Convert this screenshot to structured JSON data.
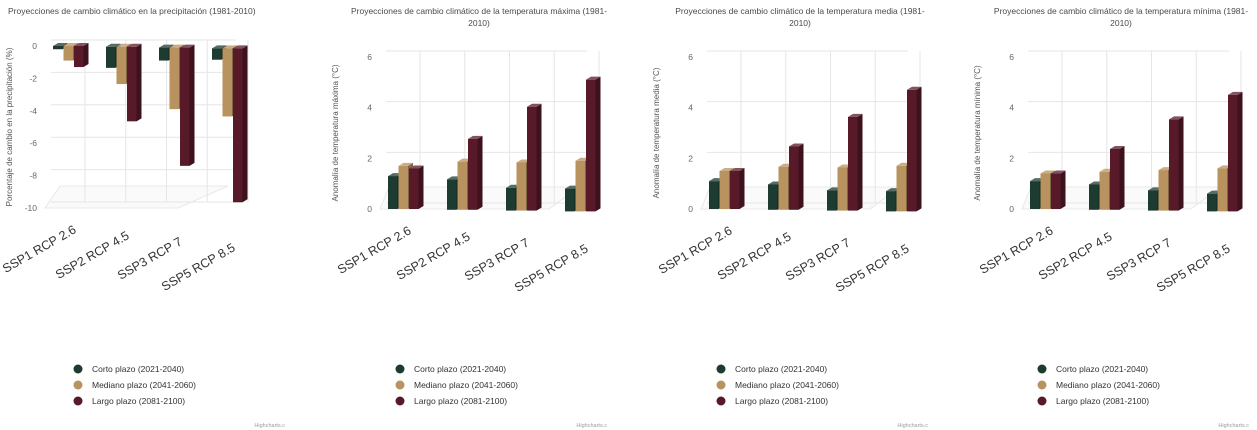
{
  "colors": {
    "series": [
      "#1d3b31",
      "#b8925f",
      "#581a29"
    ],
    "grid": "#e6e6e6",
    "text": "#333333"
  },
  "legend": [
    {
      "label": "Corto plazo (2021-2040)",
      "icon": "circle-marker"
    },
    {
      "label": "Mediano plazo (2041-2060)",
      "icon": "circle-marker"
    },
    {
      "label": "Largo plazo (2081-2100)",
      "icon": "circle-marker"
    }
  ],
  "credit": "Highcharts.c",
  "chart_data": [
    {
      "type": "bar",
      "title": [
        "Proyecciones de cambio climático en la precipitación (1981-2010)"
      ],
      "ylabel": "Porcentaje de cambio en la precipitación (%)",
      "yticks": [
        "0",
        "-2",
        "-4",
        "-6",
        "-8",
        "-10"
      ],
      "ylim": [
        -10,
        0
      ],
      "grid": true,
      "legend_position": "bottom",
      "categories": [
        "SSP1 RCP 2.6",
        "SSP2 RCP 4.5",
        "SSP3 RCP 7",
        "SSP5 RCP 8.5"
      ],
      "series": [
        {
          "name": "Corto plazo (2021-2040)",
          "values": [
            -0.2,
            -1.3,
            -0.8,
            -0.7
          ]
        },
        {
          "name": "Mediano plazo (2041-2060)",
          "values": [
            -0.9,
            -2.3,
            -3.8,
            -4.2
          ]
        },
        {
          "name": "Largo plazo (2081-2100)",
          "values": [
            -1.3,
            -4.6,
            -7.3,
            -9.5
          ]
        }
      ]
    },
    {
      "type": "bar",
      "title": [
        "Proyecciones de cambio climático de la temperatura máxima (1981-",
        "2010)"
      ],
      "ylabel": "Anomalía de temperatura máxima (°C)",
      "yticks": [
        "0",
        "2",
        "4",
        "6"
      ],
      "ylim": [
        0,
        6
      ],
      "grid": true,
      "legend_position": "bottom",
      "categories": [
        "SSP1 RCP 2.6",
        "SSP2 RCP 4.5",
        "SSP3 RCP 7",
        "SSP5 RCP 8.5"
      ],
      "series": [
        {
          "name": "Corto plazo (2021-2040)",
          "values": [
            1.3,
            1.2,
            0.9,
            0.9
          ]
        },
        {
          "name": "Mediano plazo (2041-2060)",
          "values": [
            1.7,
            1.9,
            1.9,
            2.0
          ]
        },
        {
          "name": "Largo plazo (2081-2100)",
          "values": [
            1.6,
            2.8,
            4.1,
            5.2
          ]
        }
      ]
    },
    {
      "type": "bar",
      "title": [
        "Proyecciones de cambio climático de la temperatura media (1981-",
        "2010)"
      ],
      "ylabel": "Anomalía de temperatura media (°C)",
      "yticks": [
        "0",
        "2",
        "4",
        "6"
      ],
      "ylim": [
        0,
        6
      ],
      "grid": true,
      "legend_position": "bottom",
      "categories": [
        "SSP1 RCP 2.6",
        "SSP2 RCP 4.5",
        "SSP3 RCP 7",
        "SSP5 RCP 8.5"
      ],
      "series": [
        {
          "name": "Corto plazo (2021-2040)",
          "values": [
            1.1,
            1.0,
            0.8,
            0.8
          ]
        },
        {
          "name": "Mediano plazo (2041-2060)",
          "values": [
            1.5,
            1.7,
            1.7,
            1.8
          ]
        },
        {
          "name": "Largo plazo (2081-2100)",
          "values": [
            1.5,
            2.5,
            3.7,
            4.8
          ]
        }
      ]
    },
    {
      "type": "bar",
      "title": [
        "Proyecciones de cambio climático de la temperatura mínima (1981-",
        "2010)"
      ],
      "ylabel": "Anomalía de temperatura mínima (°C)",
      "yticks": [
        "0",
        "2",
        "4",
        "6"
      ],
      "ylim": [
        0,
        6
      ],
      "grid": true,
      "legend_position": "bottom",
      "categories": [
        "SSP1 RCP 2.6",
        "SSP2 RCP 4.5",
        "SSP3 RCP 7",
        "SSP5 RCP 8.5"
      ],
      "series": [
        {
          "name": "Corto plazo (2021-2040)",
          "values": [
            1.1,
            1.0,
            0.8,
            0.7
          ]
        },
        {
          "name": "Mediano plazo (2041-2060)",
          "values": [
            1.4,
            1.5,
            1.6,
            1.7
          ]
        },
        {
          "name": "Largo plazo (2081-2100)",
          "values": [
            1.4,
            2.4,
            3.6,
            4.6
          ]
        }
      ]
    }
  ]
}
